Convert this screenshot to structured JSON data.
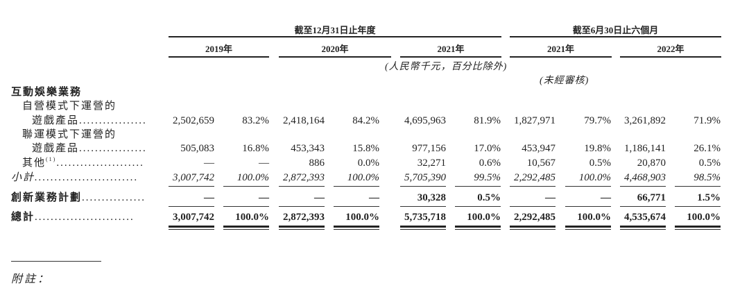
{
  "header": {
    "group_annual": "截至12月31日止年度",
    "group_interim": "截至6月30日止六個月",
    "years": [
      "2019年",
      "2020年",
      "2021年",
      "2021年",
      "2022年"
    ],
    "unit_note": "(人民幣千元，百分比除外)",
    "unaudited_note": "(未經審核)"
  },
  "section_title": "互動娛樂業務",
  "rows": [
    {
      "label_line1": "自營模式下運營的",
      "label": "遊戲產品",
      "values": [
        "2,502,659",
        "83.2%",
        "2,418,164",
        "84.2%",
        "4,695,963",
        "81.9%",
        "1,827,971",
        "79.7%",
        "3,261,892",
        "71.9%"
      ]
    },
    {
      "label_line1": "聯運模式下運營的",
      "label": "遊戲產品",
      "values": [
        "505,083",
        "16.8%",
        "453,343",
        "15.8%",
        "977,156",
        "17.0%",
        "453,947",
        "19.8%",
        "1,186,141",
        "26.1%"
      ]
    },
    {
      "label": "其他",
      "footnote_ref": "(1)",
      "values": [
        "—",
        "—",
        "886",
        "0.0%",
        "32,271",
        "0.6%",
        "10,567",
        "0.5%",
        "20,870",
        "0.5%"
      ]
    },
    {
      "label": "小計",
      "values": [
        "3,007,742",
        "100.0%",
        "2,872,393",
        "100.0%",
        "5,705,390",
        "99.5%",
        "2,292,485",
        "100.0%",
        "4,468,903",
        "98.5%"
      ]
    },
    {
      "label": "創新業務計劃",
      "values": [
        "—",
        "—",
        "—",
        "—",
        "30,328",
        "0.5%",
        "—",
        "—",
        "66,771",
        "1.5%"
      ]
    },
    {
      "label": "總計",
      "values": [
        "3,007,742",
        "100.0%",
        "2,872,393",
        "100.0%",
        "5,735,718",
        "100.0%",
        "2,292,485",
        "100.0%",
        "4,535,674",
        "100.0%"
      ]
    }
  ],
  "footnote_heading": "附註："
}
